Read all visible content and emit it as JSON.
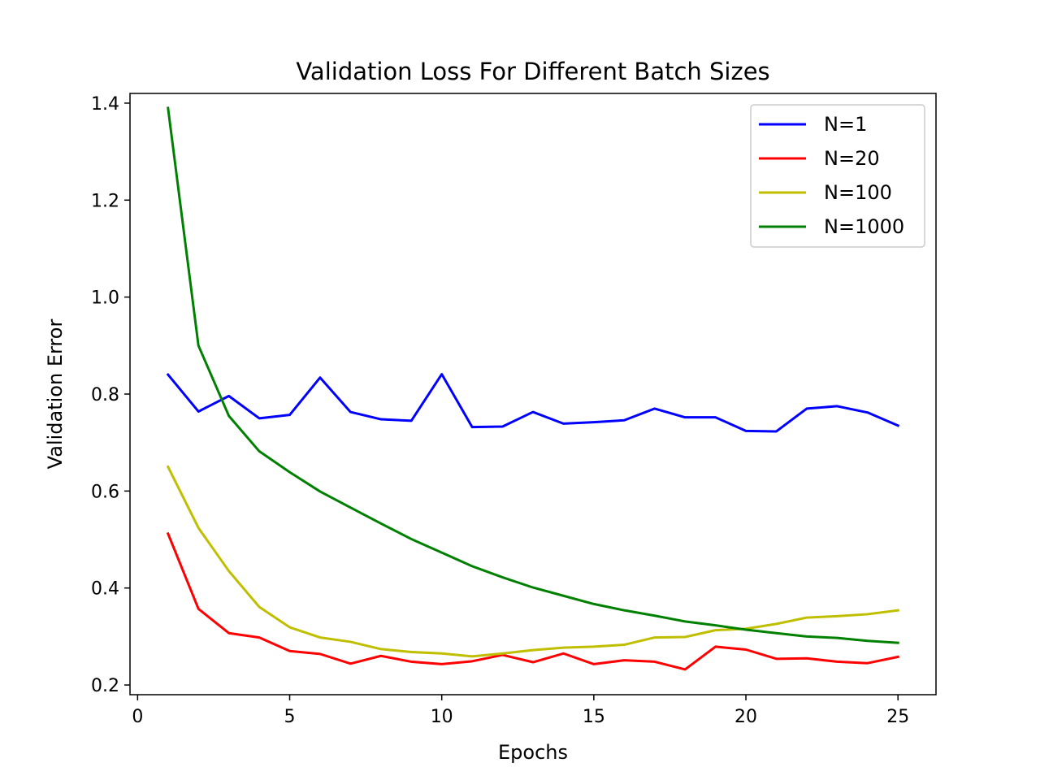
{
  "chart_data": {
    "type": "line",
    "title": "Validation Loss For Different Batch Sizes",
    "xlabel": "Epochs",
    "ylabel": "Validation Error",
    "xlim": [
      -0.25,
      26.25
    ],
    "ylim": [
      0.18,
      1.42
    ],
    "xticks": [
      0,
      5,
      10,
      15,
      20,
      25
    ],
    "yticks": [
      0.2,
      0.4,
      0.6,
      0.8,
      1.0,
      1.2,
      1.4
    ],
    "ytick_labels": [
      "0.2",
      "0.4",
      "0.6",
      "0.8",
      "1.0",
      "1.2",
      "1.4"
    ],
    "grid": false,
    "legend_position": "top-right",
    "x": [
      1,
      2,
      3,
      4,
      5,
      6,
      7,
      8,
      9,
      10,
      11,
      12,
      13,
      14,
      15,
      16,
      17,
      18,
      19,
      20,
      21,
      22,
      23,
      24,
      25
    ],
    "series": [
      {
        "name": "N=1",
        "color": "#0000ff",
        "values": [
          0.84,
          0.764,
          0.796,
          0.75,
          0.757,
          0.834,
          0.763,
          0.748,
          0.745,
          0.841,
          0.732,
          0.733,
          0.763,
          0.739,
          0.742,
          0.746,
          0.77,
          0.752,
          0.752,
          0.724,
          0.723,
          0.77,
          0.775,
          0.762,
          0.735
        ]
      },
      {
        "name": "N=20",
        "color": "#ff0000",
        "values": [
          0.512,
          0.357,
          0.307,
          0.298,
          0.27,
          0.264,
          0.244,
          0.26,
          0.248,
          0.243,
          0.249,
          0.262,
          0.247,
          0.265,
          0.243,
          0.251,
          0.248,
          0.232,
          0.279,
          0.273,
          0.254,
          0.255,
          0.248,
          0.245,
          0.258
        ]
      },
      {
        "name": "N=100",
        "color": "#bfbf00",
        "values": [
          0.65,
          0.524,
          0.435,
          0.361,
          0.319,
          0.298,
          0.289,
          0.274,
          0.268,
          0.265,
          0.259,
          0.265,
          0.272,
          0.277,
          0.279,
          0.283,
          0.298,
          0.299,
          0.313,
          0.316,
          0.326,
          0.339,
          0.342,
          0.346,
          0.354
        ]
      },
      {
        "name": "N=1000",
        "color": "#008000",
        "values": [
          1.39,
          0.9,
          0.755,
          0.682,
          0.639,
          0.599,
          0.566,
          0.533,
          0.501,
          0.473,
          0.445,
          0.422,
          0.401,
          0.384,
          0.367,
          0.354,
          0.343,
          0.331,
          0.323,
          0.314,
          0.307,
          0.3,
          0.297,
          0.291,
          0.287
        ]
      }
    ]
  }
}
